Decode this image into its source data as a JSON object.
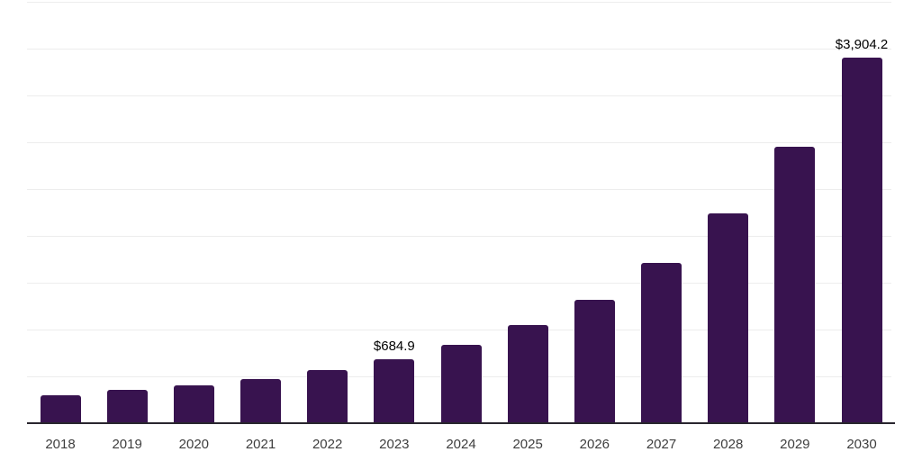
{
  "chart_data": {
    "type": "bar",
    "title": "",
    "xlabel": "",
    "ylabel": "",
    "categories": [
      "2018",
      "2019",
      "2020",
      "2021",
      "2022",
      "2023",
      "2024",
      "2025",
      "2026",
      "2027",
      "2028",
      "2029",
      "2030"
    ],
    "values": [
      297,
      355,
      403,
      476,
      566,
      684.9,
      840,
      1046,
      1316,
      1710,
      2236,
      2948,
      3904.2
    ],
    "data_labels": [
      "",
      "",
      "",
      "",
      "",
      "$684.9",
      "",
      "",
      "",
      "",
      "",
      "",
      "$3,904.2"
    ],
    "ylim": [
      0,
      4500
    ],
    "grid_step": 500,
    "grid": "horizontal-only",
    "legend_position": "none",
    "y_axis_labels_visible": false,
    "colors": {
      "bar": "#38134f",
      "axis": "#29262e",
      "gridline": "#ededed",
      "value_label": "#000000",
      "tick_label": "#3e3e3e",
      "background": "#ffffff"
    }
  }
}
